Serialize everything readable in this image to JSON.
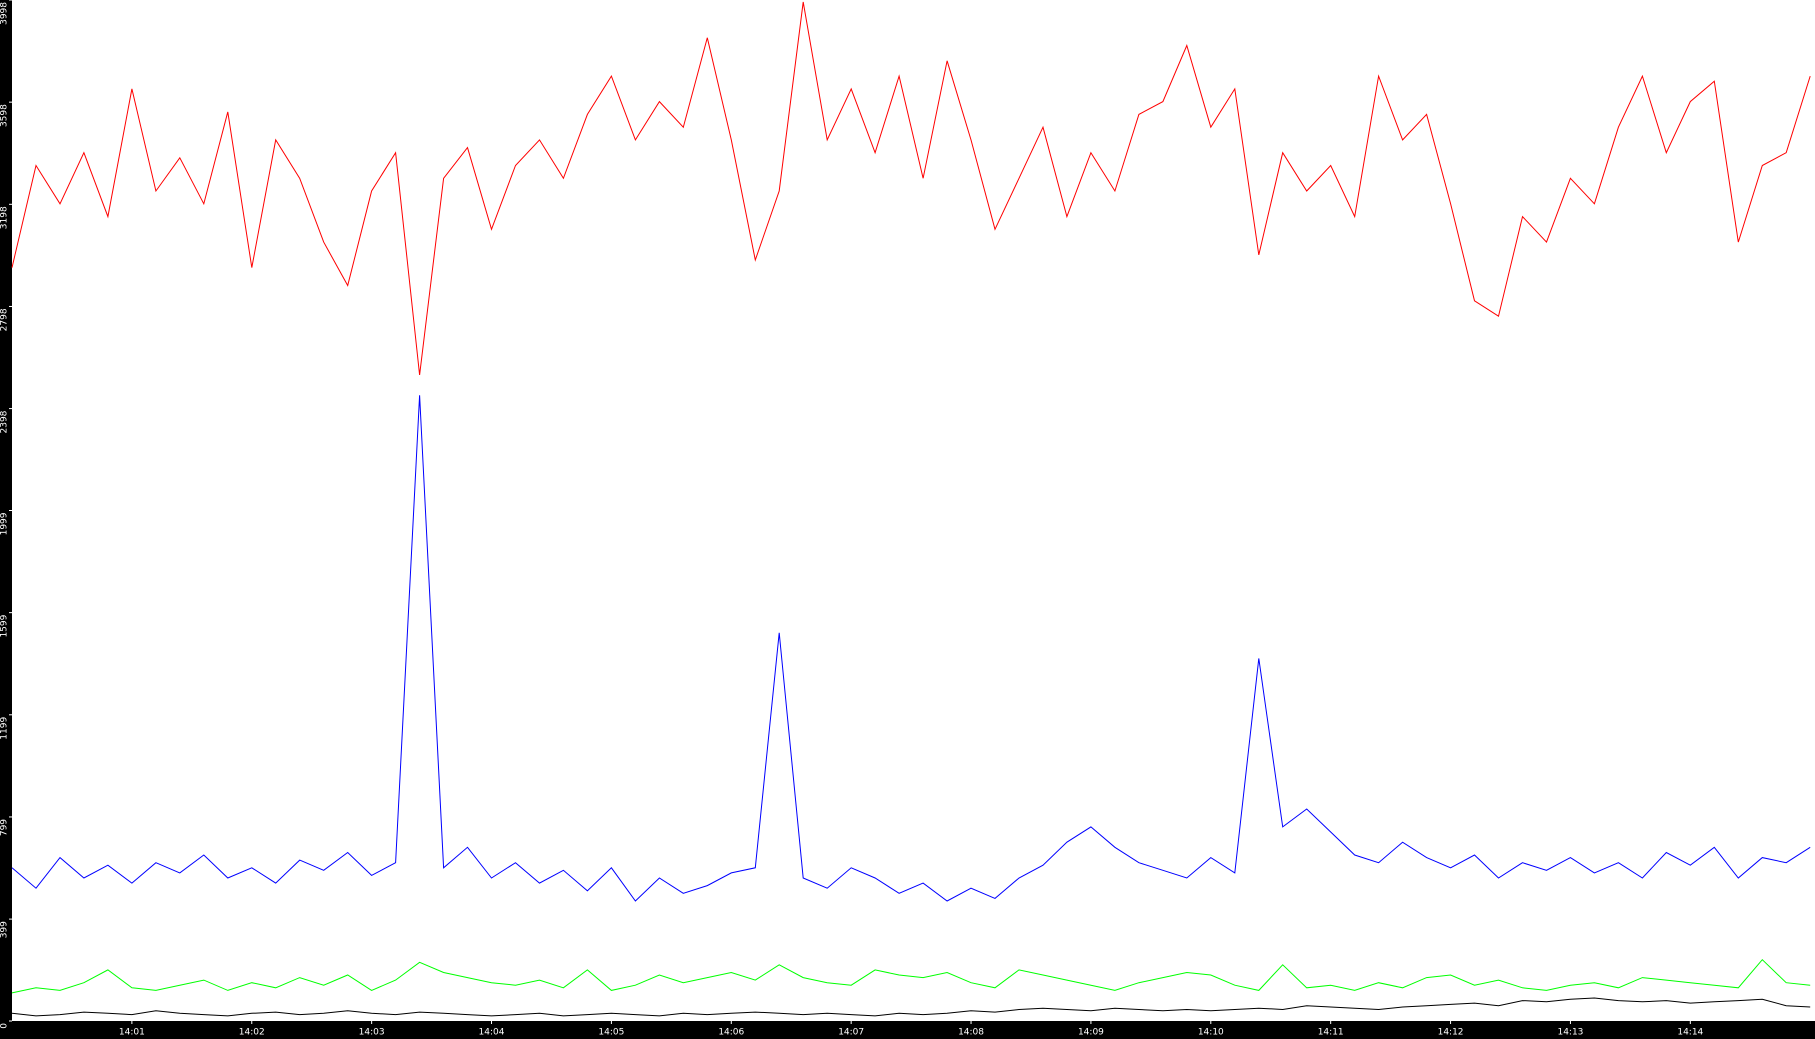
{
  "chart_data": {
    "type": "line",
    "x": [
      0,
      0.2,
      0.4,
      0.6,
      0.8,
      1,
      1.2,
      1.4,
      1.6,
      1.8,
      2,
      2.2,
      2.4,
      2.6,
      2.8,
      3,
      3.2,
      3.4,
      3.6,
      3.8,
      4,
      4.2,
      4.4,
      4.6,
      4.8,
      5,
      5.2,
      5.4,
      5.6,
      5.8,
      6,
      6.2,
      6.4,
      6.6,
      6.8,
      7,
      7.2,
      7.4,
      7.6,
      7.8,
      8,
      8.2,
      8.4,
      8.6,
      8.8,
      9,
      9.2,
      9.4,
      9.6,
      9.8,
      10,
      10.2,
      10.4,
      10.6,
      10.8,
      11,
      11.2,
      11.4,
      11.6,
      11.8,
      12,
      12.2,
      12.4,
      12.6,
      12.8,
      13,
      13.2,
      13.4,
      13.6,
      13.8,
      14,
      14.2,
      14.4,
      14.6,
      14.8,
      15
    ],
    "series": [
      {
        "color": "#ff0000",
        "values": [
          2950,
          3350,
          3200,
          3400,
          3150,
          3650,
          3250,
          3380,
          3200,
          3560,
          2950,
          3450,
          3300,
          3050,
          2880,
          3250,
          3400,
          2530,
          3300,
          3420,
          3100,
          3350,
          3450,
          3300,
          3550,
          3700,
          3450,
          3600,
          3500,
          3850,
          3450,
          2980,
          3250,
          3990,
          3450,
          3650,
          3400,
          3700,
          3300,
          3760,
          3450,
          3100,
          3300,
          3500,
          3150,
          3400,
          3250,
          3550,
          3600,
          3820,
          3500,
          3650,
          3000,
          3400,
          3250,
          3350,
          3150,
          3700,
          3450,
          3550,
          3200,
          2820,
          2760,
          3150,
          3050,
          3300,
          3200,
          3500,
          3700,
          3400,
          3600,
          3680,
          3050,
          3350,
          3400,
          3700
        ]
      },
      {
        "color": "#0000ff",
        "values": [
          600,
          520,
          640,
          560,
          610,
          540,
          620,
          580,
          650,
          560,
          600,
          540,
          630,
          590,
          660,
          570,
          620,
          2450,
          600,
          680,
          560,
          620,
          540,
          590,
          510,
          600,
          470,
          560,
          500,
          530,
          580,
          600,
          1520,
          560,
          520,
          600,
          560,
          500,
          540,
          470,
          520,
          480,
          560,
          610,
          700,
          760,
          680,
          620,
          590,
          560,
          640,
          580,
          1420,
          760,
          830,
          740,
          650,
          620,
          700,
          640,
          600,
          650,
          560,
          620,
          590,
          640,
          580,
          620,
          560,
          660,
          610,
          680,
          560,
          640,
          620,
          680
        ]
      },
      {
        "color": "#00ff00",
        "values": [
          110,
          130,
          120,
          150,
          200,
          130,
          120,
          140,
          160,
          120,
          150,
          130,
          170,
          140,
          180,
          120,
          160,
          230,
          190,
          170,
          150,
          140,
          160,
          130,
          200,
          120,
          140,
          180,
          150,
          170,
          190,
          160,
          220,
          170,
          150,
          140,
          200,
          180,
          170,
          190,
          150,
          130,
          200,
          180,
          160,
          140,
          120,
          150,
          170,
          190,
          180,
          140,
          120,
          220,
          130,
          140,
          120,
          150,
          130,
          170,
          180,
          140,
          160,
          130,
          120,
          140,
          150,
          130,
          170,
          160,
          150,
          140,
          130,
          240,
          150,
          140
        ]
      },
      {
        "color": "#000000",
        "values": [
          30,
          20,
          25,
          35,
          30,
          25,
          40,
          30,
          25,
          20,
          30,
          35,
          25,
          30,
          40,
          30,
          25,
          35,
          30,
          25,
          20,
          25,
          30,
          20,
          25,
          30,
          25,
          20,
          30,
          25,
          30,
          35,
          30,
          25,
          30,
          25,
          20,
          30,
          25,
          30,
          40,
          35,
          45,
          50,
          45,
          40,
          50,
          45,
          40,
          45,
          40,
          45,
          50,
          45,
          60,
          55,
          50,
          45,
          55,
          60,
          65,
          70,
          60,
          80,
          75,
          85,
          90,
          80,
          75,
          80,
          70,
          75,
          80,
          85,
          60,
          55
        ]
      }
    ],
    "xlim": [
      0,
      15.04
    ],
    "xticks": [
      {
        "value": 1,
        "label": "14:01"
      },
      {
        "value": 2,
        "label": "14:02"
      },
      {
        "value": 3,
        "label": "14:03"
      },
      {
        "value": 4,
        "label": "14:04"
      },
      {
        "value": 5,
        "label": "14:05"
      },
      {
        "value": 6,
        "label": "14:06"
      },
      {
        "value": 7,
        "label": "14:07"
      },
      {
        "value": 8,
        "label": "14:08"
      },
      {
        "value": 9,
        "label": "14:09"
      },
      {
        "value": 10,
        "label": "14:10"
      },
      {
        "value": 11,
        "label": "14:11"
      },
      {
        "value": 12,
        "label": "14:12"
      },
      {
        "value": 13,
        "label": "14:13"
      },
      {
        "value": 14,
        "label": "14:14"
      }
    ],
    "ylim": [
      0,
      3998
    ],
    "yticks": [
      0,
      399,
      799,
      1199,
      1599,
      1999,
      2398,
      2798,
      3198,
      3598,
      3998
    ]
  }
}
